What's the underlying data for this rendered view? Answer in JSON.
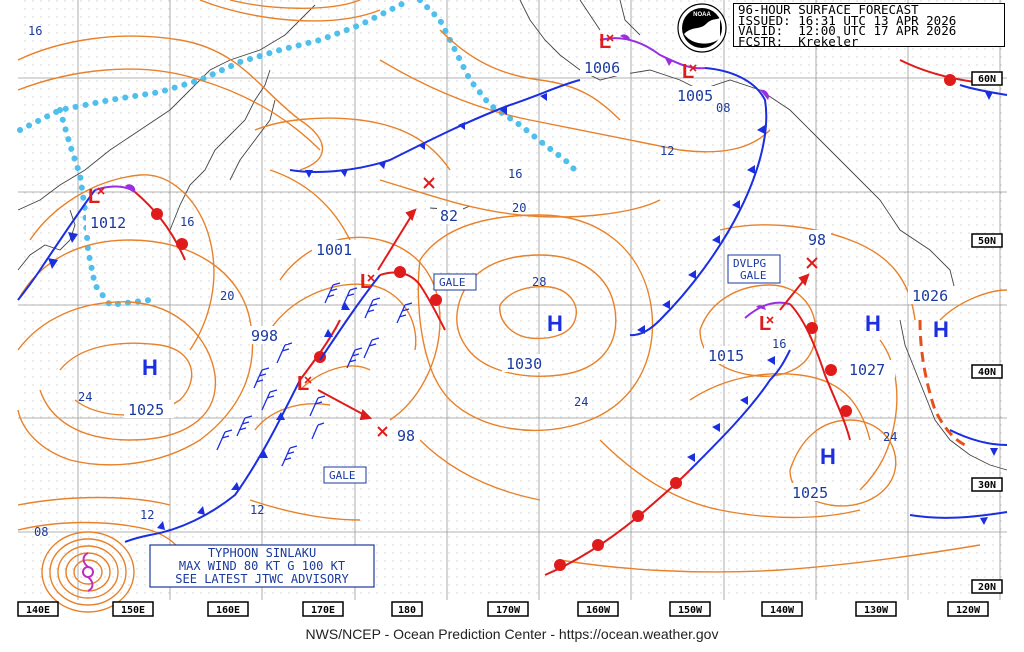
{
  "header": {
    "title": "96-HOUR SURFACE FORECAST",
    "issued": "ISSUED: 16:31 UTC 13 APR 2026",
    "valid": "VALID:  12:00 UTC 17 APR 2026",
    "forecaster": "FCSTR:  Krekeler"
  },
  "logo": {
    "text": "NOAA"
  },
  "credit": "NWS/NCEP - Ocean Prediction Center - https://ocean.weather.gov",
  "colors": {
    "isobar": "#e8822a",
    "cold_front": "#1b2ee0",
    "warm_front": "#e01b1b",
    "occluded": "#9a2ee0",
    "ice": "#4fc0ec",
    "label": "#1b3a9e",
    "low": "#e01b1b"
  },
  "longitude_labels": [
    "140E",
    "150E",
    "160E",
    "170E",
    "180",
    "170W",
    "160W",
    "150W",
    "140W",
    "130W",
    "120W"
  ],
  "latitude_labels": [
    "60N",
    "50N",
    "40N",
    "30N",
    "20N"
  ],
  "pressure_centers": [
    {
      "type": "L",
      "value": "1012"
    },
    {
      "type": "L",
      "value": "1006"
    },
    {
      "type": "L",
      "value": "1005"
    },
    {
      "type": "L",
      "value": "1001"
    },
    {
      "type": "L",
      "value": "998"
    },
    {
      "type": "L",
      "value": "1015"
    },
    {
      "type": "H",
      "value": "1025"
    },
    {
      "type": "H",
      "value": "1030"
    },
    {
      "type": "H",
      "value": "1027"
    },
    {
      "type": "H",
      "value": "1025"
    },
    {
      "type": "H",
      "value": "1026"
    }
  ],
  "forecast_positions": [
    "82",
    "98",
    "98"
  ],
  "isobar_labels": [
    "16",
    "16",
    "20",
    "24",
    "12",
    "08",
    "16",
    "20",
    "28",
    "24",
    "12",
    "16",
    "24",
    "08"
  ],
  "warnings": [
    "GALE",
    "GALE"
  ],
  "developing": [
    "DVLPG",
    "GALE"
  ],
  "typhoon": {
    "line1": "TYPHOON SINLAKU",
    "line2": "MAX WIND 80 KT G 100 KT",
    "line3": "SEE LATEST JTWC ADVISORY"
  }
}
